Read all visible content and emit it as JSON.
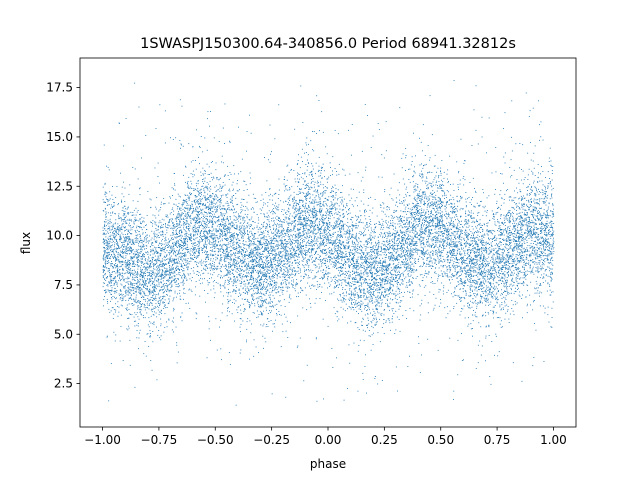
{
  "chart_data": {
    "type": "scatter",
    "title": "1SWASPJ150300.64-340856.0 Period 68941.32812s",
    "xlabel": "phase",
    "ylabel": "flux",
    "xlim": [
      -1.1,
      1.1
    ],
    "ylim": [
      0.3,
      19.0
    ],
    "x_ticks": [
      -1.0,
      -0.75,
      -0.5,
      -0.25,
      0.0,
      0.25,
      0.5,
      0.75,
      1.0
    ],
    "x_tick_labels": [
      "−1.00",
      "−0.75",
      "−0.50",
      "−0.25",
      "0.00",
      "0.25",
      "0.50",
      "0.75",
      "1.00"
    ],
    "y_ticks": [
      2.5,
      5.0,
      7.5,
      10.0,
      12.5,
      15.0,
      17.5
    ],
    "y_tick_labels": [
      "2.5",
      "5.0",
      "7.5",
      "10.0",
      "12.5",
      "15.0",
      "17.5"
    ],
    "grid": false,
    "marker_color": "#1f77b4",
    "series": [
      {
        "name": "",
        "description_points": "dense phase-folded light curve; flux oscillates about 9.5 with two cycles per unit phase, scatter spanning roughly 1.3 to 18",
        "envelope": {
          "phase": [
            -1.0,
            -0.9,
            -0.8,
            -0.7,
            -0.6,
            -0.5,
            -0.4,
            -0.3,
            -0.2,
            -0.1,
            0.0,
            0.1,
            0.2,
            0.3,
            0.4,
            0.5,
            0.6,
            0.7,
            0.8,
            0.9,
            1.0
          ],
          "median_flux": [
            9.3,
            8.9,
            8.0,
            9.0,
            10.6,
            10.4,
            9.1,
            8.4,
            9.2,
            10.5,
            10.2,
            8.9,
            8.0,
            9.0,
            10.6,
            10.3,
            9.2,
            8.5,
            9.3,
            10.4,
            10.0
          ]
        },
        "flux_range": [
          1.3,
          18.0
        ]
      }
    ]
  }
}
